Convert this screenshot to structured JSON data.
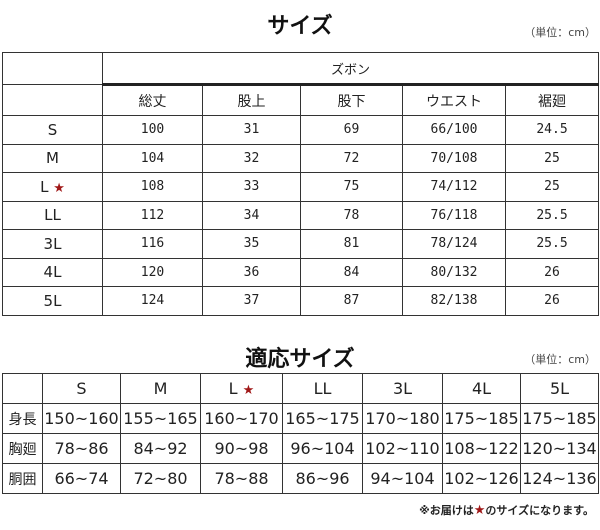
{
  "size_chart": {
    "title": "サイズ",
    "unit": "（単位：cm）",
    "group": "ズボン",
    "columns": [
      "総丈",
      "股上",
      "股下",
      "ウエスト",
      "裾廻"
    ],
    "rows": [
      {
        "size": "S",
        "star": "",
        "values": [
          "100",
          "31",
          "69",
          "66/100",
          "24.5"
        ]
      },
      {
        "size": "M",
        "star": "",
        "values": [
          "104",
          "32",
          "72",
          "70/108",
          "25"
        ]
      },
      {
        "size": "L",
        "star": "★",
        "values": [
          "108",
          "33",
          "75",
          "74/112",
          "25"
        ]
      },
      {
        "size": "LL",
        "star": "",
        "values": [
          "112",
          "34",
          "78",
          "76/118",
          "25.5"
        ]
      },
      {
        "size": "3L",
        "star": "",
        "values": [
          "116",
          "35",
          "81",
          "78/124",
          "25.5"
        ]
      },
      {
        "size": "4L",
        "star": "",
        "values": [
          "120",
          "36",
          "84",
          "80/132",
          "26"
        ]
      },
      {
        "size": "5L",
        "star": "",
        "values": [
          "124",
          "37",
          "87",
          "82/138",
          "26"
        ]
      }
    ]
  },
  "fit_chart": {
    "title": "適応サイズ",
    "unit": "（単位：cm）",
    "sizes": [
      {
        "label": "S",
        "star": ""
      },
      {
        "label": "M",
        "star": ""
      },
      {
        "label": "L",
        "star": "★"
      },
      {
        "label": "LL",
        "star": ""
      },
      {
        "label": "3L",
        "star": ""
      },
      {
        "label": "4L",
        "star": ""
      },
      {
        "label": "5L",
        "star": ""
      }
    ],
    "rows": [
      {
        "label": "身長",
        "values": [
          "150~160",
          "155~165",
          "160~170",
          "165~175",
          "170~180",
          "175~185",
          "175~185"
        ]
      },
      {
        "label": "胸廻",
        "values": [
          "78~86",
          "84~92",
          "90~98",
          "96~104",
          "102~110",
          "108~122",
          "120~134"
        ]
      },
      {
        "label": "胴囲",
        "values": [
          "66~74",
          "72~80",
          "78~88",
          "86~96",
          "94~104",
          "102~126",
          "124~136"
        ]
      }
    ]
  },
  "note": {
    "prefix": "※お届けは",
    "star": "★",
    "suffix": "のサイズになります。"
  },
  "colors": {
    "star": "#a01818",
    "border": "#333333"
  }
}
